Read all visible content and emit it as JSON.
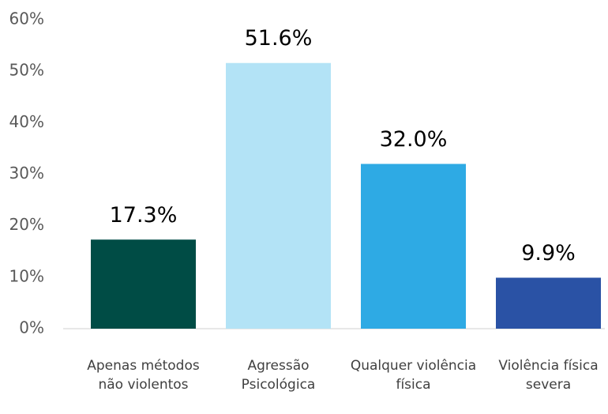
{
  "chart_data": {
    "type": "bar",
    "categories": [
      "Apenas métodos não violentos",
      "Agressão Psicológica",
      "Qualquer violência física",
      "Violência física severa"
    ],
    "values": [
      17.3,
      51.6,
      32.0,
      9.9
    ],
    "value_labels": [
      "17.3%",
      "51.6%",
      "32.0%",
      "9.9%"
    ],
    "colors": [
      "#004c45",
      "#b3e3f6",
      "#2eaae4",
      "#2a52a5"
    ],
    "ylim": [
      0,
      60
    ],
    "yticks": [
      {
        "value": 0,
        "label": "0%"
      },
      {
        "value": 10,
        "label": "10%"
      },
      {
        "value": 20,
        "label": "20%"
      },
      {
        "value": 30,
        "label": "30%"
      },
      {
        "value": 40,
        "label": "40%"
      },
      {
        "value": 50,
        "label": "50%"
      },
      {
        "value": 60,
        "label": "60%"
      }
    ],
    "grid": false
  }
}
